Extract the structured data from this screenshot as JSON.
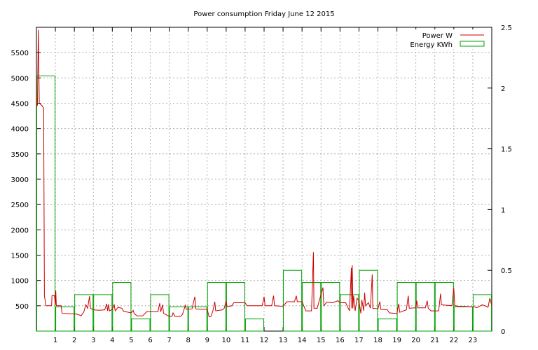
{
  "chart_data": {
    "type": "line",
    "title": "Power consumption Friday June 12 2015",
    "x_ticks": [
      "1",
      "2",
      "3",
      "4",
      "5",
      "6",
      "7",
      "8",
      "9",
      "10",
      "11",
      "12",
      "13",
      "14",
      "15",
      "16",
      "17",
      "18",
      "19",
      "20",
      "21",
      "22",
      "23"
    ],
    "xlim": [
      0,
      24
    ],
    "y1_ticks": [
      "500",
      "1000",
      "1500",
      "2000",
      "2500",
      "3000",
      "3500",
      "4000",
      "4500",
      "5000",
      "5500"
    ],
    "y1lim": [
      0,
      6000
    ],
    "y2_ticks": [
      "0",
      "0.5",
      "1",
      "1.5",
      "2",
      "2.5"
    ],
    "y2lim": [
      0,
      2.5
    ],
    "grid": true,
    "legend_position": "top-right",
    "colors": {
      "power": "#cc0000",
      "energy": "#00a000"
    },
    "series": [
      {
        "name": "Power W",
        "axis": "left",
        "style": "line",
        "points": [
          [
            0.0,
            4500
          ],
          [
            0.05,
            4450
          ],
          [
            0.1,
            5950
          ],
          [
            0.15,
            4500
          ],
          [
            0.3,
            4450
          ],
          [
            0.38,
            4400
          ],
          [
            0.42,
            700
          ],
          [
            0.5,
            500
          ],
          [
            0.8,
            500
          ],
          [
            0.82,
            700
          ],
          [
            0.95,
            700
          ],
          [
            1.0,
            520
          ],
          [
            1.02,
            800
          ],
          [
            1.05,
            500
          ],
          [
            1.3,
            500
          ],
          [
            1.35,
            350
          ],
          [
            2.0,
            340
          ],
          [
            2.2,
            330
          ],
          [
            2.35,
            300
          ],
          [
            2.5,
            380
          ],
          [
            2.6,
            520
          ],
          [
            2.7,
            450
          ],
          [
            2.8,
            690
          ],
          [
            2.85,
            450
          ],
          [
            3.0,
            420
          ],
          [
            3.3,
            410
          ],
          [
            3.6,
            420
          ],
          [
            3.7,
            540
          ],
          [
            3.75,
            400
          ],
          [
            3.8,
            530
          ],
          [
            3.85,
            400
          ],
          [
            4.0,
            430
          ],
          [
            4.1,
            520
          ],
          [
            4.15,
            400
          ],
          [
            4.3,
            470
          ],
          [
            4.5,
            450
          ],
          [
            4.6,
            390
          ],
          [
            5.0,
            360
          ],
          [
            5.1,
            410
          ],
          [
            5.15,
            350
          ],
          [
            5.3,
            300
          ],
          [
            5.6,
            300
          ],
          [
            5.8,
            380
          ],
          [
            6.0,
            380
          ],
          [
            6.4,
            380
          ],
          [
            6.5,
            550
          ],
          [
            6.55,
            380
          ],
          [
            6.65,
            520
          ],
          [
            6.7,
            350
          ],
          [
            6.8,
            330
          ],
          [
            7.0,
            290
          ],
          [
            7.15,
            290
          ],
          [
            7.2,
            360
          ],
          [
            7.3,
            290
          ],
          [
            7.6,
            290
          ],
          [
            7.7,
            330
          ],
          [
            7.85,
            510
          ],
          [
            7.9,
            430
          ],
          [
            8.2,
            440
          ],
          [
            8.35,
            680
          ],
          [
            8.4,
            440
          ],
          [
            8.6,
            430
          ],
          [
            9.0,
            430
          ],
          [
            9.1,
            280
          ],
          [
            9.2,
            290
          ],
          [
            9.3,
            400
          ],
          [
            9.4,
            580
          ],
          [
            9.45,
            400
          ],
          [
            9.8,
            420
          ],
          [
            9.9,
            450
          ],
          [
            10.0,
            600
          ],
          [
            10.05,
            480
          ],
          [
            10.3,
            500
          ],
          [
            10.4,
            560
          ],
          [
            11.0,
            560
          ],
          [
            11.1,
            500
          ],
          [
            11.9,
            500
          ],
          [
            12.0,
            680
          ],
          [
            12.05,
            500
          ],
          [
            12.4,
            500
          ],
          [
            12.5,
            700
          ],
          [
            12.55,
            500
          ],
          [
            13.0,
            490
          ],
          [
            13.2,
            580
          ],
          [
            13.3,
            580
          ],
          [
            13.6,
            580
          ],
          [
            13.7,
            700
          ],
          [
            13.75,
            580
          ],
          [
            14.0,
            580
          ],
          [
            14.2,
            400
          ],
          [
            14.5,
            400
          ],
          [
            14.6,
            1560
          ],
          [
            14.63,
            450
          ],
          [
            14.8,
            450
          ],
          [
            15.1,
            860
          ],
          [
            15.15,
            500
          ],
          [
            15.3,
            570
          ],
          [
            15.6,
            560
          ],
          [
            15.9,
            600
          ],
          [
            16.0,
            560
          ],
          [
            16.1,
            560
          ],
          [
            16.3,
            560
          ],
          [
            16.5,
            400
          ],
          [
            16.6,
            1250
          ],
          [
            16.62,
            450
          ],
          [
            16.65,
            1300
          ],
          [
            16.68,
            450
          ],
          [
            16.72,
            700
          ],
          [
            16.8,
            400
          ],
          [
            16.9,
            650
          ],
          [
            17.0,
            600
          ],
          [
            17.1,
            350
          ],
          [
            17.15,
            620
          ],
          [
            17.25,
            400
          ],
          [
            17.3,
            760
          ],
          [
            17.35,
            500
          ],
          [
            17.5,
            560
          ],
          [
            17.6,
            450
          ],
          [
            17.7,
            1120
          ],
          [
            17.73,
            450
          ],
          [
            18.0,
            440
          ],
          [
            18.1,
            580
          ],
          [
            18.15,
            430
          ],
          [
            18.5,
            420
          ],
          [
            18.6,
            360
          ],
          [
            19.0,
            350
          ],
          [
            19.1,
            540
          ],
          [
            19.15,
            370
          ],
          [
            19.5,
            420
          ],
          [
            19.6,
            700
          ],
          [
            19.65,
            450
          ],
          [
            20.0,
            460
          ],
          [
            20.05,
            600
          ],
          [
            20.1,
            460
          ],
          [
            20.5,
            460
          ],
          [
            20.6,
            600
          ],
          [
            20.65,
            450
          ],
          [
            20.8,
            400
          ],
          [
            21.2,
            400
          ],
          [
            21.3,
            740
          ],
          [
            21.35,
            520
          ],
          [
            21.9,
            500
          ],
          [
            22.0,
            850
          ],
          [
            22.05,
            500
          ],
          [
            22.3,
            490
          ],
          [
            22.6,
            490
          ],
          [
            22.8,
            480
          ],
          [
            23.1,
            480
          ],
          [
            23.2,
            460
          ],
          [
            23.3,
            480
          ],
          [
            23.5,
            520
          ],
          [
            23.7,
            490
          ],
          [
            23.8,
            470
          ],
          [
            23.9,
            650
          ],
          [
            24.0,
            500
          ]
        ]
      },
      {
        "name": "Energy KWh",
        "axis": "right",
        "style": "steps",
        "bins": [
          [
            0,
            2.1
          ],
          [
            1,
            0.2
          ],
          [
            2,
            0.3
          ],
          [
            3,
            0.3
          ],
          [
            4,
            0.4
          ],
          [
            5,
            0.1
          ],
          [
            6,
            0.3
          ],
          [
            7,
            0.2
          ],
          [
            8,
            0.2
          ],
          [
            9,
            0.4
          ],
          [
            10,
            0.4
          ],
          [
            11,
            0.1
          ],
          [
            12,
            0.0
          ],
          [
            13,
            0.5
          ],
          [
            14,
            0.4
          ],
          [
            15,
            0.4
          ],
          [
            16,
            0.3
          ],
          [
            17,
            0.5
          ],
          [
            18,
            0.1
          ],
          [
            19,
            0.4
          ],
          [
            20,
            0.4
          ],
          [
            21,
            0.4
          ],
          [
            22,
            0.2
          ],
          [
            23,
            0.3
          ]
        ]
      }
    ]
  }
}
